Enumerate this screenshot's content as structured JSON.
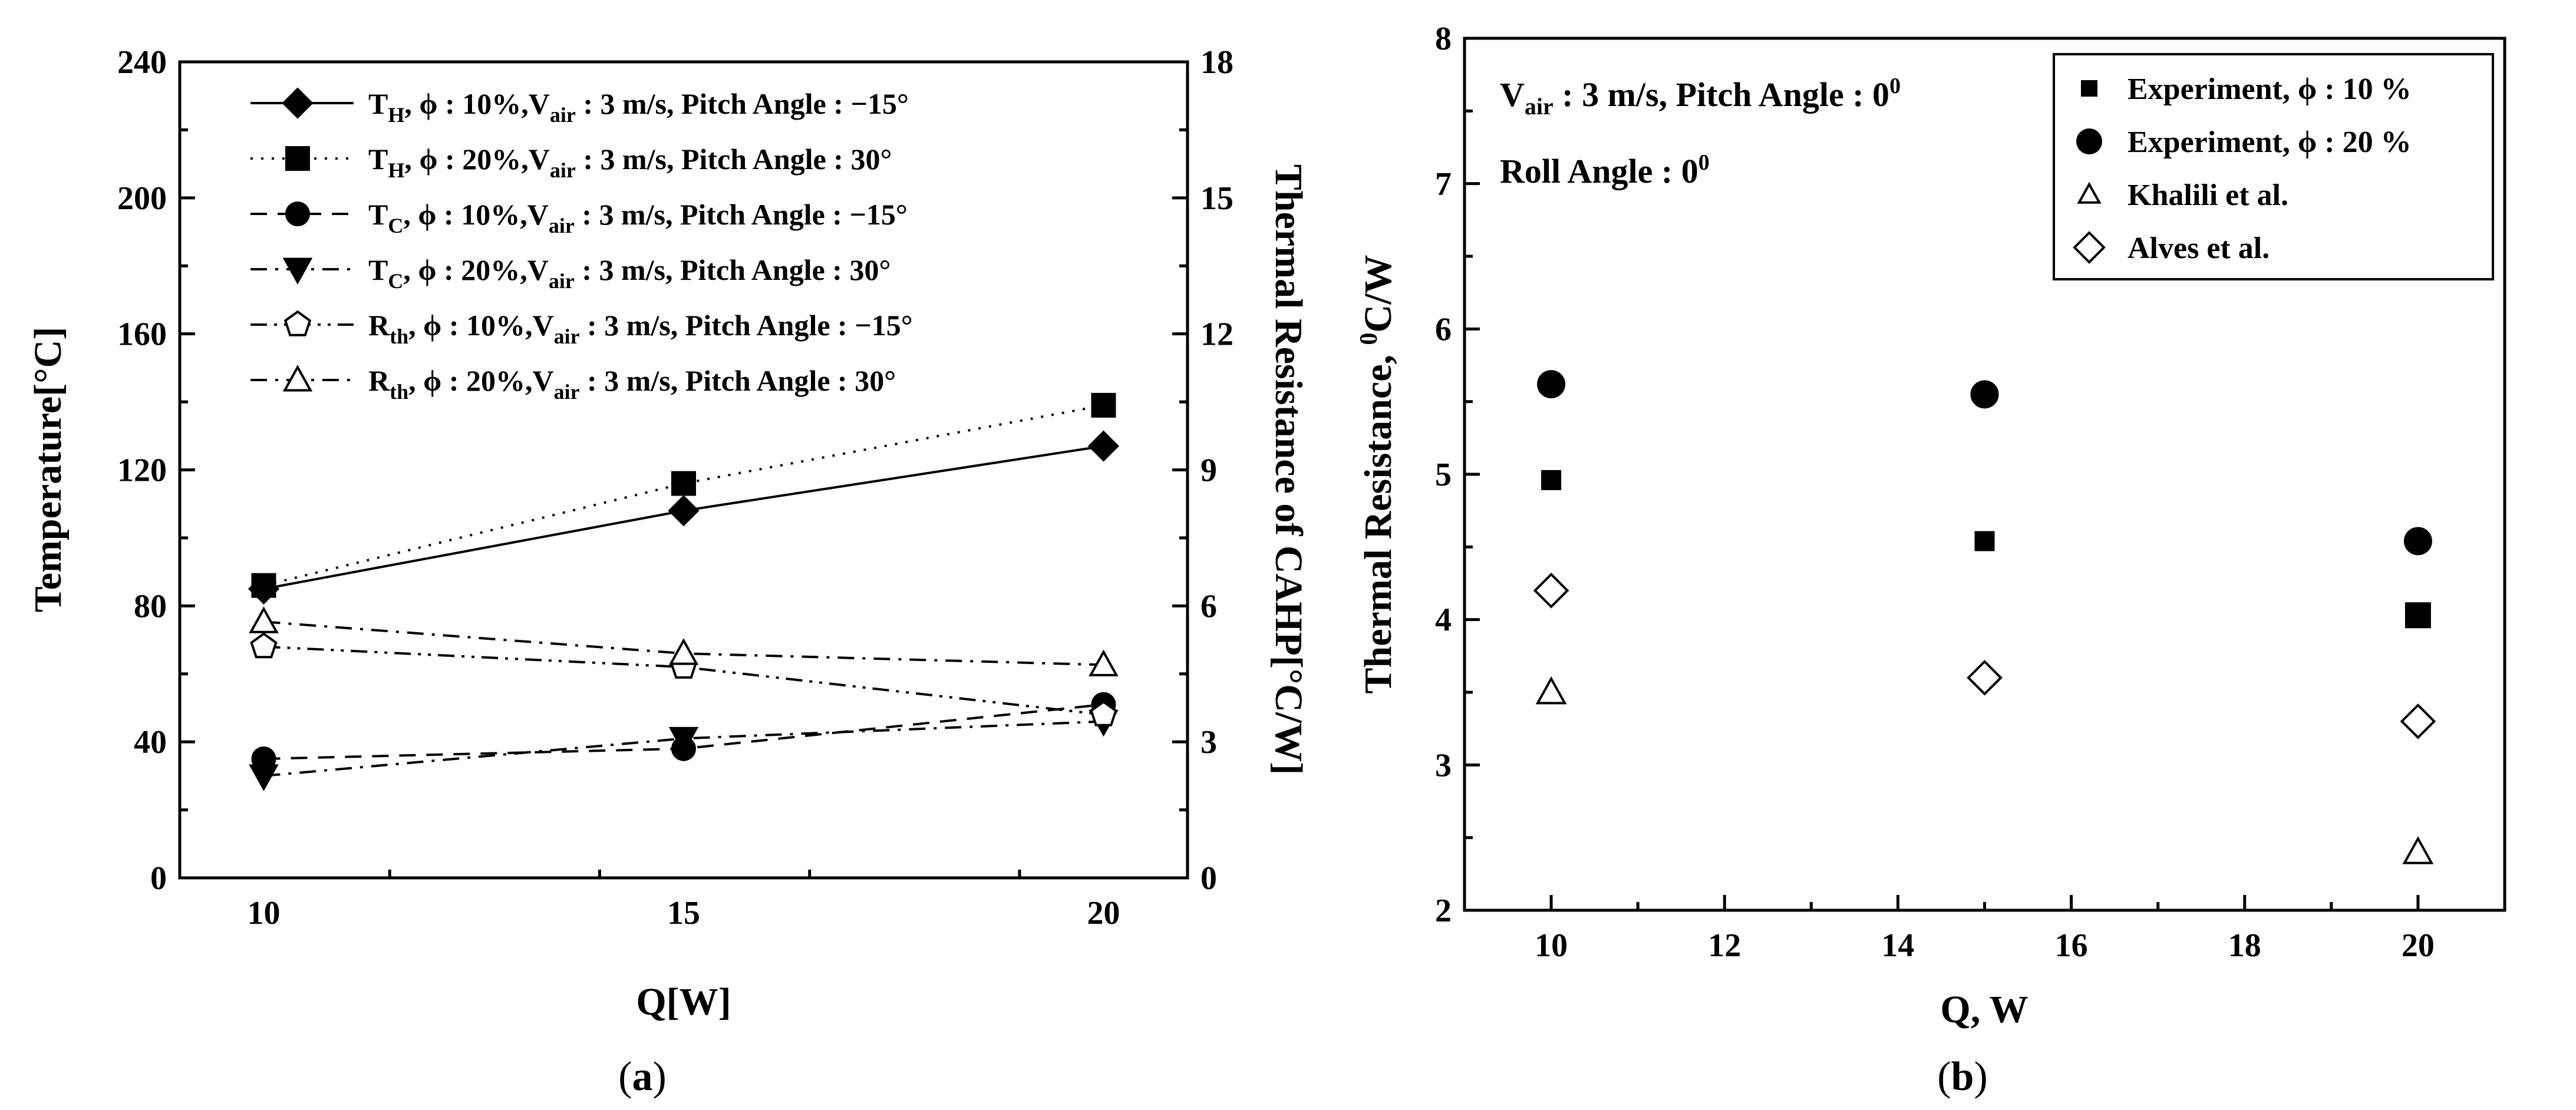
{
  "chart_data": [
    {
      "type": "line",
      "panel_caption": "a",
      "xlabel": "Q[W]",
      "ylabel_left": "Temperature[°C]",
      "ylabel_right": "Thermal Resistance of CAHP[°C/W]",
      "xlim": [
        9,
        21
      ],
      "x_ticks": [
        10,
        15,
        20
      ],
      "ylim_left": [
        0,
        240
      ],
      "y_ticks_left": [
        0,
        40,
        80,
        120,
        160,
        200,
        240
      ],
      "ylim_right": [
        0,
        18
      ],
      "y_ticks_right": [
        0,
        3,
        6,
        9,
        12,
        15,
        18
      ],
      "series": [
        {
          "name": "T_H, ϕ : 10%,V_air : 3 m/s, Pitch Angle : −15°",
          "label": {
            "sym": "T",
            "sub": "H",
            "rest": ", ϕ : 10%,V",
            "sub2": "air",
            "tail": " : 3 m/s, Pitch Angle : −15°"
          },
          "axis": "left",
          "marker": "diamond",
          "filled": true,
          "line": "solid",
          "x": [
            10,
            15,
            20
          ],
          "y": [
            85,
            108,
            127
          ]
        },
        {
          "name": "T_H, ϕ : 20%,V_air : 3 m/s, Pitch Angle : 30°",
          "label": {
            "sym": "T",
            "sub": "H",
            "rest": ", ϕ : 20%,V",
            "sub2": "air",
            "tail": " : 3 m/s, Pitch Angle : 30°"
          },
          "axis": "left",
          "marker": "square",
          "filled": true,
          "line": "dot",
          "x": [
            10,
            15,
            20
          ],
          "y": [
            86,
            116,
            139
          ]
        },
        {
          "name": "T_C, ϕ : 10%,V_air : 3 m/s, Pitch Angle : −15°",
          "label": {
            "sym": "T",
            "sub": "C",
            "rest": ", ϕ : 10%,V",
            "sub2": "air",
            "tail": " : 3 m/s, Pitch Angle : −15°"
          },
          "axis": "left",
          "marker": "circle",
          "filled": true,
          "line": "dash",
          "x": [
            10,
            15,
            20
          ],
          "y": [
            35,
            38,
            51
          ]
        },
        {
          "name": "T_C, ϕ : 20%,V_air : 3 m/s, Pitch Angle : 30°",
          "label": {
            "sym": "T",
            "sub": "C",
            "rest": ", ϕ : 20%,V",
            "sub2": "air",
            "tail": " : 3 m/s, Pitch Angle : 30°"
          },
          "axis": "left",
          "marker": "triangle-down",
          "filled": true,
          "line": "dashdot",
          "x": [
            10,
            15,
            20
          ],
          "y": [
            30,
            41,
            46
          ]
        },
        {
          "name": "R_th, ϕ : 10%,V_air : 3 m/s, Pitch Angle : −15°",
          "label": {
            "sym": "R",
            "sub": "th",
            "rest": ", ϕ : 10%,V",
            "sub2": "air",
            "tail": " : 3 m/s, Pitch Angle : −15°"
          },
          "axis": "right",
          "marker": "pentagon",
          "filled": false,
          "line": "dashdotdot",
          "x": [
            10,
            15,
            20
          ],
          "y": [
            5.1,
            4.65,
            3.6
          ]
        },
        {
          "name": "R_th, ϕ : 20%,V_air : 3 m/s, Pitch Angle : 30°",
          "label": {
            "sym": "R",
            "sub": "th",
            "rest": ", ϕ : 20%,V",
            "sub2": "air",
            "tail": " : 3 m/s, Pitch Angle : 30°"
          },
          "axis": "right",
          "marker": "triangle-up",
          "filled": false,
          "line": "dashdot",
          "x": [
            10,
            15,
            20
          ],
          "y": [
            5.65,
            4.95,
            4.7
          ]
        }
      ]
    },
    {
      "type": "scatter",
      "panel_caption": "b",
      "xlabel": "Q, W",
      "ylabel": "Thermal Resistance, ⁰C/W",
      "ylabel_parts": {
        "main": "Thermal Resistance, ",
        "sup": "0",
        "tail": "C/W"
      },
      "xlim": [
        9,
        21
      ],
      "x_ticks": [
        10,
        12,
        14,
        16,
        18,
        20
      ],
      "ylim": [
        2,
        8
      ],
      "y_ticks": [
        2,
        3,
        4,
        5,
        6,
        7,
        8
      ],
      "annotations": [
        {
          "text": "V_air : 3 m/s, Pitch Angle : 0⁰",
          "parts": {
            "sym": "V",
            "sub": "air",
            "rest": " : 3 m/s, Pitch Angle : 0",
            "sup": "0"
          }
        },
        {
          "text": "Roll Angle : 0⁰",
          "parts": {
            "rest": "Roll Angle : 0",
            "sup": "0"
          }
        }
      ],
      "series": [
        {
          "name": "Experiment, ϕ : 10 %",
          "marker": "square-small",
          "filled": true,
          "x": [
            10,
            15,
            20
          ],
          "y": [
            4.96,
            4.54,
            4.03
          ]
        },
        {
          "name": "Experiment, ϕ : 20 %",
          "marker": "circle",
          "filled": true,
          "x": [
            10,
            15,
            20
          ],
          "y": [
            5.62,
            5.55,
            4.54
          ]
        },
        {
          "name": "Khalili et al.",
          "marker": "triangle-up",
          "filled": false,
          "x": [
            10,
            20
          ],
          "y": [
            3.5,
            2.4
          ]
        },
        {
          "name": "Alves et al.",
          "marker": "diamond",
          "filled": false,
          "x": [
            10,
            15,
            20
          ],
          "y": [
            4.2,
            3.6,
            3.3
          ]
        }
      ]
    }
  ]
}
